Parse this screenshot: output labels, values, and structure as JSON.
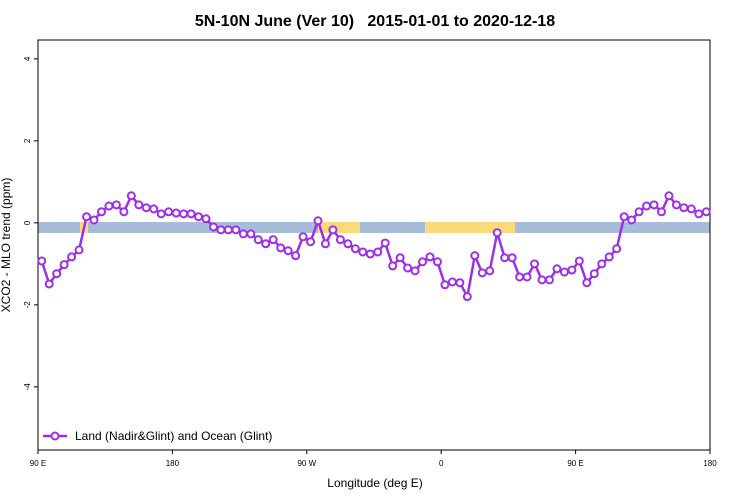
{
  "chart_data": {
    "type": "line",
    "title": "5N-10N June (Ver 10)   2015-01-01 to 2020-12-18",
    "x_label": "Longitude (deg E)",
    "y_label": "XCO2 - MLO trend (ppm)",
    "x": [
      92.5,
      97.5,
      102.5,
      107.5,
      112.5,
      117.5,
      122.5,
      127.5,
      132.5,
      137.5,
      142.5,
      147.5,
      152.5,
      157.5,
      162.5,
      167.5,
      172.5,
      177.5,
      182.5,
      187.5,
      192.5,
      197.5,
      202.5,
      207.5,
      212.5,
      217.5,
      222.5,
      227.5,
      232.5,
      237.5,
      242.5,
      247.5,
      252.5,
      257.5,
      262.5,
      267.5,
      272.5,
      277.5,
      282.5,
      287.5,
      292.5,
      297.5,
      302.5,
      307.5,
      312.5,
      317.5,
      322.5,
      327.5,
      332.5,
      337.5,
      342.5,
      347.5,
      352.5,
      357.5,
      362.5,
      367.5,
      372.5,
      377.5,
      382.5,
      387.5,
      392.5,
      397.5,
      402.5,
      407.5,
      412.5,
      417.5,
      422.5,
      427.5,
      432.5,
      437.5,
      442.5,
      447.5,
      452.5,
      457.5,
      462.5,
      467.5,
      472.5,
      477.5,
      482.5,
      487.5,
      492.5,
      497.5,
      502.5,
      507.5,
      512.5,
      517.5,
      522.5,
      527.5,
      532.5,
      537.5
    ],
    "series": [
      {
        "name": "Land (Nadir&Glint) and Ocean (Glint)",
        "color": "#9b30e8",
        "values": [
          -0.93,
          -1.49,
          -1.24,
          -1.02,
          -0.83,
          -0.66,
          0.15,
          0.07,
          0.27,
          0.41,
          0.44,
          0.27,
          0.66,
          0.44,
          0.37,
          0.34,
          0.22,
          0.27,
          0.24,
          0.22,
          0.22,
          0.15,
          0.1,
          -0.1,
          -0.17,
          -0.17,
          -0.17,
          -0.27,
          -0.27,
          -0.41,
          -0.51,
          -0.41,
          -0.61,
          -0.68,
          -0.8,
          -0.34,
          -0.46,
          0.05,
          -0.51,
          -0.17,
          -0.41,
          -0.51,
          -0.63,
          -0.71,
          -0.76,
          -0.71,
          -0.49,
          -1.05,
          -0.85,
          -1.1,
          -1.17,
          -0.95,
          -0.83,
          -0.95,
          -1.51,
          -1.44,
          -1.46,
          -1.8,
          -0.8,
          -1.22,
          -1.17,
          -0.24,
          -0.85,
          -0.85,
          -1.32,
          -1.32,
          -1.0,
          -1.39,
          -1.39,
          -1.12,
          -1.2,
          -1.15,
          -0.93,
          -1.46,
          -1.24,
          -1.0,
          -0.83,
          -0.63,
          0.15,
          0.07,
          0.27,
          0.41,
          0.44,
          0.27,
          0.66,
          0.44,
          0.37,
          0.34,
          0.22,
          0.27
        ]
      }
    ],
    "xlim": [
      90,
      540
    ],
    "xticks": [
      {
        "value": 90,
        "label": "90 E"
      },
      180,
      {
        "value": 270,
        "label": "90 W"
      },
      {
        "value": 360,
        "label": "0"
      },
      {
        "value": 450,
        "label": "90 E"
      },
      {
        "value": 540,
        "label": "180"
      }
    ],
    "ylim": [
      -5.54,
      4.46
    ],
    "yticks": [
      -4,
      -2,
      0,
      2,
      4
    ],
    "legend": "bottom-left"
  }
}
